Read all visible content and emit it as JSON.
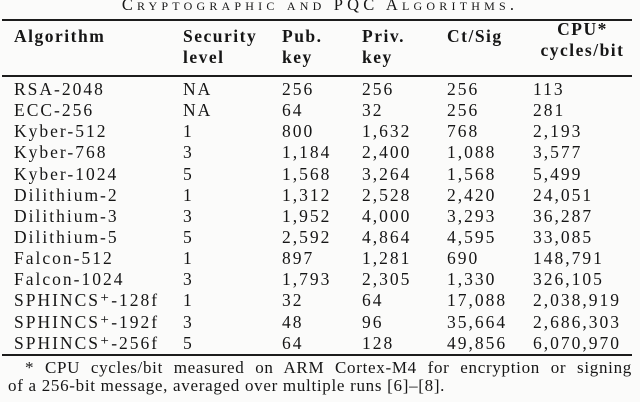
{
  "caption": {
    "text": "Cryptographic and PQC Algorithms."
  },
  "table": {
    "columns": [
      {
        "id": "algorithm",
        "lines": [
          "Algorithm"
        ]
      },
      {
        "id": "security-level",
        "lines": [
          "Security",
          "level"
        ]
      },
      {
        "id": "pub-key",
        "lines": [
          "Pub.",
          "key"
        ]
      },
      {
        "id": "priv-key",
        "lines": [
          "Priv.",
          "key"
        ]
      },
      {
        "id": "ct-sig",
        "lines": [
          "Ct/Sig"
        ]
      },
      {
        "id": "cpu-cycles-per-bit",
        "lines": [
          "CPU*",
          "cycles/bit"
        ]
      }
    ],
    "rows": [
      {
        "cells": [
          "RSA-2048",
          "NA",
          "256",
          "256",
          "256",
          "113"
        ]
      },
      {
        "cells": [
          "ECC-256",
          "NA",
          "64",
          "32",
          "256",
          "281"
        ]
      },
      {
        "cells": [
          "Kyber-512",
          "1",
          "800",
          "1,632",
          "768",
          "2,193"
        ]
      },
      {
        "cells": [
          "Kyber-768",
          "3",
          "1,184",
          "2,400",
          "1,088",
          "3,577"
        ]
      },
      {
        "cells": [
          "Kyber-1024",
          "5",
          "1,568",
          "3,264",
          "1,568",
          "5,499"
        ]
      },
      {
        "cells": [
          "Dilithium-2",
          "1",
          "1,312",
          "2,528",
          "2,420",
          "24,051"
        ]
      },
      {
        "cells": [
          "Dilithium-3",
          "3",
          "1,952",
          "4,000",
          "3,293",
          "36,287"
        ]
      },
      {
        "cells": [
          "Dilithium-5",
          "5",
          "2,592",
          "4,864",
          "4,595",
          "33,085"
        ]
      },
      {
        "cells": [
          "Falcon-512",
          "1",
          "897",
          "1,281",
          "690",
          "148,791"
        ]
      },
      {
        "cells": [
          "Falcon-1024",
          "3",
          "1,793",
          "2,305",
          "1,330",
          "326,105"
        ]
      },
      {
        "cells": [
          "SPHINCS⁺-128f",
          "1",
          "32",
          "64",
          "17,088",
          "2,038,919"
        ]
      },
      {
        "cells": [
          "SPHINCS⁺-192f",
          "3",
          "48",
          "96",
          "35,664",
          "2,686,303"
        ]
      },
      {
        "cells": [
          "SPHINCS⁺-256f",
          "5",
          "64",
          "128",
          "49,856",
          "6,070,970"
        ]
      }
    ]
  },
  "footnote": {
    "lines": [
      "* CPU cycles/bit measured on ARM Cortex-M4 for encryption or signing",
      "of a 256-bit message, averaged over multiple runs [6]–[8]."
    ]
  },
  "colors": {
    "text": "#161616",
    "rule": "#1c1c1c",
    "background": "#fbfbfa"
  }
}
